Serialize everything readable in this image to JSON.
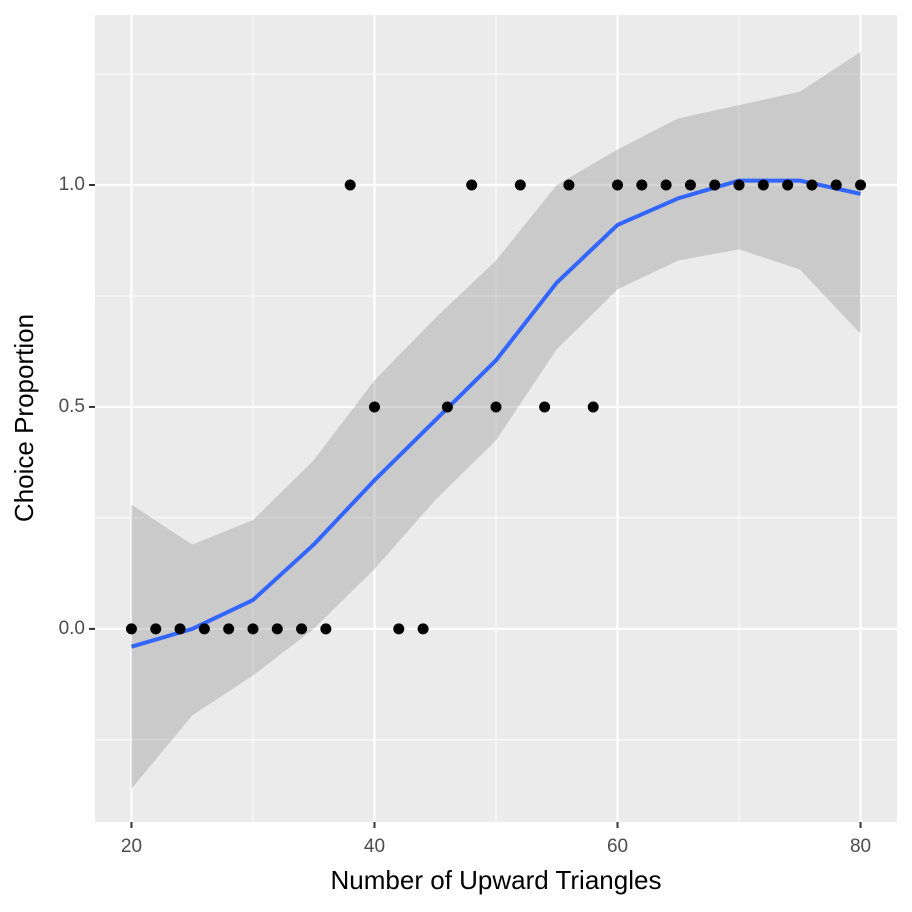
{
  "chart_data": {
    "type": "scatter",
    "x_label": "Number of Upward Triangles",
    "y_label": "Choice Proportion",
    "xlim": [
      17,
      83
    ],
    "ylim": [
      -0.435,
      1.383
    ],
    "xticks": [
      20,
      40,
      60,
      80
    ],
    "yticks": [
      {
        "value": 0,
        "label": "0.0"
      },
      {
        "value": 0.5,
        "label": "0.5"
      },
      {
        "value": 1,
        "label": "1.0"
      }
    ],
    "grid": true,
    "points": {
      "color": "#000000",
      "x": [
        20,
        22,
        24,
        26,
        28,
        30,
        32,
        34,
        36,
        38,
        40,
        42,
        44,
        46,
        48,
        50,
        52,
        54,
        56,
        58,
        60,
        62,
        64,
        66,
        68,
        70,
        72,
        74,
        76,
        78,
        80
      ],
      "values": [
        0,
        0,
        0,
        0,
        0,
        0,
        0,
        0,
        0,
        1,
        0.5,
        0,
        0,
        0.5,
        1,
        0.5,
        1,
        0.5,
        1,
        0.5,
        1,
        1,
        1,
        1,
        1,
        1,
        1,
        1,
        1,
        1,
        1
      ]
    },
    "smooth": {
      "color": "#3366ff",
      "x": [
        20,
        25,
        30,
        35,
        40,
        45,
        50,
        55,
        60,
        65,
        70,
        75,
        80
      ],
      "values": [
        -0.04,
        0.0,
        0.065,
        0.19,
        0.335,
        0.47,
        0.605,
        0.78,
        0.91,
        0.97,
        1.01,
        1.01,
        0.98
      ]
    },
    "band": {
      "color": "#999999",
      "x": [
        20,
        25,
        30,
        35,
        40,
        45,
        50,
        55,
        60,
        65,
        70,
        75,
        80
      ],
      "lower": [
        -0.36,
        -0.195,
        -0.105,
        0.0,
        0.135,
        0.29,
        0.425,
        0.63,
        0.765,
        0.83,
        0.855,
        0.81,
        0.665
      ],
      "upper": [
        0.28,
        0.19,
        0.245,
        0.38,
        0.56,
        0.7,
        0.83,
        1.0,
        1.08,
        1.15,
        1.18,
        1.21,
        1.3
      ]
    }
  }
}
